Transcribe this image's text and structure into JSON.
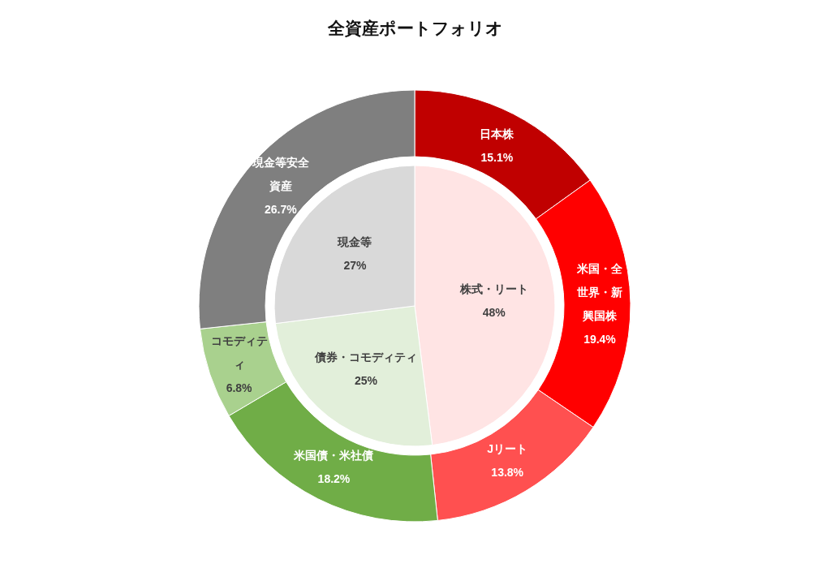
{
  "chart_data": [
    {
      "type": "donut",
      "title": "全資産ポートフォリオ",
      "categories": [
        "日本株",
        "米国・全世界・新興国株",
        "Jリート",
        "米国債・米社債",
        "コモディティ",
        "現金等安全資産"
      ],
      "values": [
        15.1,
        19.4,
        13.8,
        18.2,
        6.8,
        26.7
      ],
      "colors": [
        "#c00000",
        "#ff0000",
        "#ff5050",
        "#70ad47",
        "#a9d18e",
        "#7f7f7f"
      ],
      "value_labels": [
        "15.1%",
        "19.4%",
        "13.8%",
        "18.2%",
        "6.8%",
        "26.7%"
      ]
    },
    {
      "type": "pie",
      "categories": [
        "株式・リート",
        "債券・コモディティ",
        "現金等"
      ],
      "values": [
        48,
        25,
        27
      ],
      "colors": [
        "#ffe4e4",
        "#e2efda",
        "#d9d9d9"
      ],
      "value_labels": [
        "48%",
        "25%",
        "27%"
      ]
    }
  ]
}
